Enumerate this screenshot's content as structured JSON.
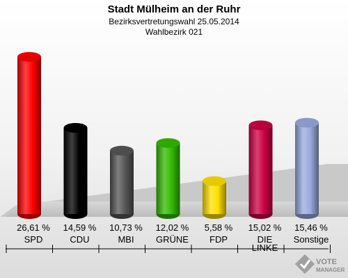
{
  "chart_data": {
    "type": "bar",
    "title": "Stadt Mülheim an der Ruhr",
    "subtitle": "Bezirksvertretungswahl 25.05.2014",
    "subtitle2": "Wahlbezirk 021",
    "categories": [
      "SPD",
      "CDU",
      "MBI",
      "GRÜNE",
      "FDP",
      "DIE LINKE",
      "Sonstige"
    ],
    "values": [
      26.61,
      14.59,
      10.73,
      12.02,
      5.58,
      15.02,
      15.46
    ],
    "value_labels": [
      "26,61 %",
      "14,59 %",
      "10,73 %",
      "12,02 %",
      "5,58 %",
      "15,02 %",
      "15,46 %"
    ],
    "category_labels": [
      [
        "SPD"
      ],
      [
        "CDU"
      ],
      [
        "MBI"
      ],
      [
        "GRÜNE"
      ],
      [
        "FDP"
      ],
      [
        "DIE",
        "LINKE"
      ],
      [
        "Sonstige"
      ]
    ],
    "colors": [
      "#ff0000",
      "#000000",
      "#555555",
      "#33bb00",
      "#ffe000",
      "#cc0044",
      "#99aadd"
    ],
    "ylim": [
      0,
      28
    ],
    "grid": false,
    "legend": "none"
  },
  "watermark": {
    "line1": "VOTE",
    "line2": "MANAGER"
  }
}
